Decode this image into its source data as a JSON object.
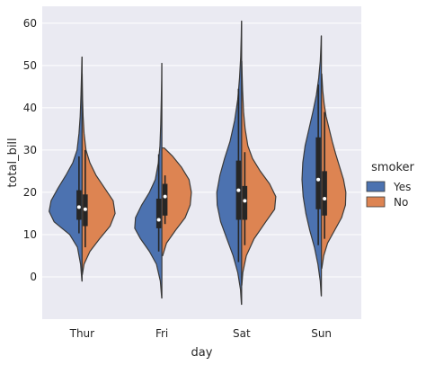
{
  "chart_data": {
    "type": "violin",
    "split": true,
    "xlabel": "day",
    "ylabel": "total_bill",
    "categories": [
      "Thur",
      "Fri",
      "Sat",
      "Sun"
    ],
    "ylim": [
      -10,
      64
    ],
    "yticks": [
      0,
      10,
      20,
      30,
      40,
      50,
      60
    ],
    "grid": true,
    "legend": {
      "title": "smoker",
      "placement": "right",
      "entries": [
        {
          "label": "Yes",
          "color": "#4c72b0"
        },
        {
          "label": "No",
          "color": "#dd8452"
        }
      ]
    },
    "colors": {
      "background": "#eaeaf2",
      "grid": "#ffffff",
      "inner": "#262626"
    },
    "series": [
      {
        "name": "Yes",
        "color": "#4c72b0",
        "violins": [
          {
            "category": "Thur",
            "min": 10.3,
            "q1": 13.5,
            "median": 16.5,
            "q3": 20.5,
            "max": 28.5,
            "range": [
              -1,
              52
            ],
            "density": [
              [
                -1,
                0.005
              ],
              [
                3,
                0.04
              ],
              [
                7,
                0.12
              ],
              [
                10,
                0.32
              ],
              [
                13,
                0.72
              ],
              [
                15.5,
                0.85
              ],
              [
                18,
                0.8
              ],
              [
                21,
                0.62
              ],
              [
                24,
                0.42
              ],
              [
                27,
                0.24
              ],
              [
                30,
                0.13
              ],
              [
                34,
                0.08
              ],
              [
                38,
                0.05
              ],
              [
                43,
                0.03
              ],
              [
                48,
                0.015
              ],
              [
                52,
                0.005
              ]
            ]
          },
          {
            "category": "Fri",
            "min": 6,
            "q1": 11.5,
            "median": 13.5,
            "q3": 18.5,
            "max": 29,
            "range": [
              -5,
              50.5
            ],
            "density": [
              [
                -5,
                0.005
              ],
              [
                -1,
                0.04
              ],
              [
                3,
                0.14
              ],
              [
                6,
                0.32
              ],
              [
                9,
                0.55
              ],
              [
                11.5,
                0.7
              ],
              [
                14,
                0.68
              ],
              [
                17,
                0.52
              ],
              [
                20,
                0.32
              ],
              [
                23,
                0.17
              ],
              [
                27,
                0.09
              ],
              [
                31,
                0.05
              ],
              [
                36,
                0.03
              ],
              [
                42,
                0.015
              ],
              [
                47,
                0.006
              ],
              [
                50.5,
                0.003
              ]
            ]
          },
          {
            "category": "Sat",
            "min": 3.5,
            "q1": 13.5,
            "median": 20.5,
            "q3": 27.5,
            "max": 44.5,
            "range": [
              -6.5,
              60.5
            ],
            "density": [
              [
                -6.5,
                0.005
              ],
              [
                -3,
                0.03
              ],
              [
                1,
                0.1
              ],
              [
                5,
                0.22
              ],
              [
                9,
                0.38
              ],
              [
                13,
                0.54
              ],
              [
                17,
                0.63
              ],
              [
                20,
                0.64
              ],
              [
                24,
                0.56
              ],
              [
                28,
                0.44
              ],
              [
                32,
                0.3
              ],
              [
                37,
                0.18
              ],
              [
                42,
                0.1
              ],
              [
                47,
                0.055
              ],
              [
                52,
                0.025
              ],
              [
                57,
                0.01
              ],
              [
                60.5,
                0.004
              ]
            ]
          },
          {
            "category": "Sun",
            "min": 7.5,
            "q1": 16,
            "median": 23,
            "q3": 33,
            "max": 45.5,
            "range": [
              -4.5,
              57
            ],
            "density": [
              [
                -4.5,
                0.005
              ],
              [
                -1,
                0.03
              ],
              [
                3,
                0.09
              ],
              [
                7,
                0.18
              ],
              [
                11,
                0.3
              ],
              [
                15,
                0.4
              ],
              [
                19,
                0.47
              ],
              [
                23,
                0.5
              ],
              [
                27,
                0.48
              ],
              [
                31,
                0.42
              ],
              [
                35,
                0.32
              ],
              [
                39,
                0.22
              ],
              [
                43,
                0.13
              ],
              [
                47,
                0.07
              ],
              [
                51,
                0.03
              ],
              [
                55,
                0.01
              ],
              [
                57,
                0.004
              ]
            ]
          }
        ]
      },
      {
        "name": "No",
        "color": "#dd8452",
        "violins": [
          {
            "category": "Thur",
            "min": 7,
            "q1": 12,
            "median": 16,
            "q3": 19.5,
            "max": 30,
            "range": [
              0.5,
              48
            ],
            "density": [
              [
                0.5,
                0.005
              ],
              [
                3,
                0.05
              ],
              [
                6,
                0.2
              ],
              [
                9,
                0.45
              ],
              [
                12,
                0.72
              ],
              [
                15,
                0.85
              ],
              [
                18,
                0.8
              ],
              [
                21,
                0.58
              ],
              [
                24,
                0.36
              ],
              [
                27,
                0.2
              ],
              [
                30,
                0.1
              ],
              [
                34,
                0.05
              ],
              [
                38,
                0.025
              ],
              [
                42,
                0.012
              ],
              [
                46,
                0.005
              ],
              [
                48,
                0.002
              ]
            ]
          },
          {
            "category": "Fri",
            "min": 12.5,
            "q1": 14.5,
            "median": 19,
            "q3": 22,
            "max": 24,
            "range": [
              5,
              30.5
            ],
            "density": [
              [
                5,
                0.02
              ],
              [
                8,
                0.12
              ],
              [
                11,
                0.35
              ],
              [
                14,
                0.6
              ],
              [
                17,
                0.73
              ],
              [
                20,
                0.76
              ],
              [
                23,
                0.7
              ],
              [
                26,
                0.5
              ],
              [
                28.5,
                0.28
              ],
              [
                30.5,
                0.06
              ]
            ]
          },
          {
            "category": "Sat",
            "min": 7.5,
            "q1": 13.5,
            "median": 18,
            "q3": 21.5,
            "max": 29.5,
            "range": [
              -2,
              51
            ],
            "density": [
              [
                -2,
                0.005
              ],
              [
                1,
                0.03
              ],
              [
                5,
                0.12
              ],
              [
                9,
                0.32
              ],
              [
                13,
                0.62
              ],
              [
                16,
                0.85
              ],
              [
                19,
                0.88
              ],
              [
                22,
                0.72
              ],
              [
                25,
                0.48
              ],
              [
                28,
                0.28
              ],
              [
                31,
                0.16
              ],
              [
                35,
                0.09
              ],
              [
                39,
                0.05
              ],
              [
                44,
                0.025
              ],
              [
                48,
                0.012
              ],
              [
                51,
                0.005
              ]
            ]
          },
          {
            "category": "Sun",
            "min": 9,
            "q1": 14.5,
            "median": 18.5,
            "q3": 25,
            "max": 39,
            "range": [
              2,
              48
            ],
            "density": [
              [
                2,
                0.01
              ],
              [
                5,
                0.06
              ],
              [
                8,
                0.16
              ],
              [
                11,
                0.34
              ],
              [
                14,
                0.52
              ],
              [
                17,
                0.62
              ],
              [
                20,
                0.63
              ],
              [
                23,
                0.57
              ],
              [
                26,
                0.47
              ],
              [
                29,
                0.37
              ],
              [
                32,
                0.28
              ],
              [
                35,
                0.2
              ],
              [
                38,
                0.12
              ],
              [
                41,
                0.07
              ],
              [
                44,
                0.035
              ],
              [
                48,
                0.01
              ]
            ]
          }
        ]
      }
    ]
  }
}
